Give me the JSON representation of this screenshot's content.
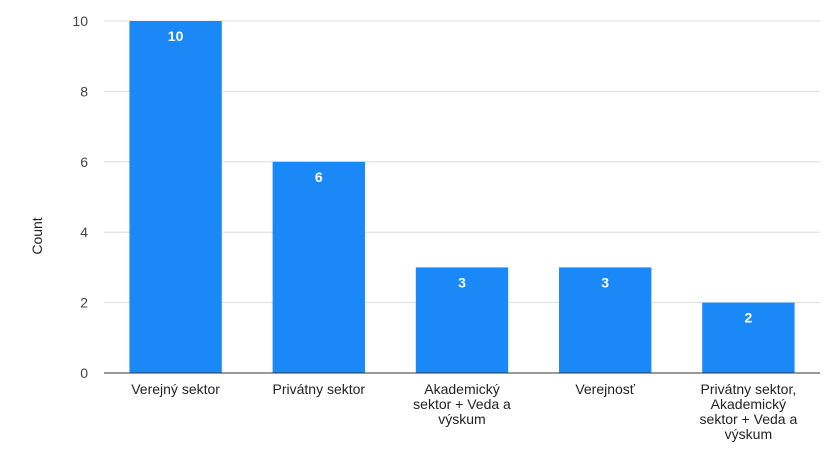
{
  "chart_data": {
    "type": "bar",
    "title": "",
    "xlabel": "",
    "ylabel": "Count",
    "ylim": [
      0,
      10
    ],
    "yticks": [
      0,
      2,
      4,
      6,
      8,
      10
    ],
    "grid": true,
    "bar_color": "#1a88f7",
    "categories": [
      [
        "Verejný sektor"
      ],
      [
        "Privátny sektor"
      ],
      [
        "Akademický",
        "sektor + Veda a",
        "výskum"
      ],
      [
        "Verejnosť"
      ],
      [
        "Privátny sektor,",
        "Akademický",
        "sektor + Veda a",
        "výskum"
      ]
    ],
    "values": [
      10,
      6,
      3,
      3,
      2
    ],
    "data_labels": [
      "10",
      "6",
      "3",
      "3",
      "2"
    ]
  }
}
